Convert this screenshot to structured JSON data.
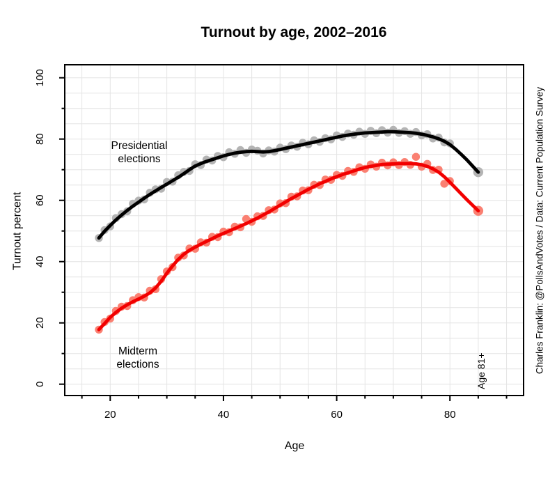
{
  "title": "Turnout by age, 2002–2016",
  "xlabel": "Age",
  "ylabel": "Turnout percent",
  "watermark": {
    "text": "Charles Franklin: @PollsAndVotes / Data: Current Population Survey",
    "color": "#1a1aee"
  },
  "annotations": {
    "presidential_label": {
      "line1": "Presidential",
      "line2": "elections",
      "color": "#000000"
    },
    "midterm_label": {
      "line1": "Midterm",
      "line2": "elections",
      "color": "#f20000"
    },
    "age_bin_label": {
      "text": "Age 81+",
      "color": "#a6a6a6"
    }
  },
  "axes": {
    "x_ticks_major": [
      20,
      40,
      60,
      80
    ],
    "x_ticks_minor": [
      15,
      25,
      30,
      35,
      45,
      50,
      55,
      65,
      70,
      75,
      85,
      90
    ],
    "y_ticks_major": [
      0,
      20,
      40,
      60,
      80,
      100
    ],
    "y_ticks_minor": [
      10,
      30,
      50,
      70,
      90
    ],
    "grid_step": 5,
    "grid_color": "#e4e4e4"
  },
  "chart_data": {
    "type": "scatter",
    "title": "Turnout by age, 2002–2016",
    "xlabel": "Age",
    "ylabel": "Turnout percent",
    "xlim": [
      12,
      93
    ],
    "ylim": [
      0,
      100
    ],
    "grid": "on",
    "note_last_point": "Age 81+ aggregated at x=85",
    "x_ages": [
      18,
      19,
      20,
      21,
      22,
      23,
      24,
      25,
      26,
      27,
      28,
      29,
      30,
      31,
      32,
      33,
      34,
      35,
      36,
      37,
      38,
      39,
      40,
      41,
      42,
      43,
      44,
      45,
      46,
      47,
      48,
      49,
      50,
      51,
      52,
      53,
      54,
      55,
      56,
      57,
      58,
      59,
      60,
      61,
      62,
      63,
      64,
      65,
      66,
      67,
      68,
      69,
      70,
      71,
      72,
      73,
      74,
      75,
      76,
      77,
      78,
      79,
      80,
      81,
      82,
      83,
      84,
      85
    ],
    "series": [
      {
        "name": "Presidential elections",
        "line_color": "#000000",
        "point_color": "#b4b4b4",
        "points": [
          47.7,
          50.3,
          51.5,
          54.2,
          55.5,
          56.4,
          58.9,
          59.9,
          60.3,
          62.5,
          63.6,
          63.8,
          66.0,
          66.1,
          68.2,
          69.3,
          69.6,
          71.8,
          71.5,
          73.3,
          73.0,
          74.5,
          74.1,
          75.7,
          75.2,
          76.4,
          75.5,
          76.6,
          76.2,
          75.3,
          76.3,
          75.9,
          77.2,
          76.7,
          77.9,
          77.5,
          78.8,
          78.3,
          79.6,
          79.1,
          80.3,
          79.9,
          81.2,
          80.7,
          81.8,
          81.4,
          82.4,
          81.7,
          82.7,
          81.9,
          82.9,
          82.1,
          83.0,
          82.0,
          82.6,
          81.7,
          82.3,
          81.2,
          81.6,
          80.2,
          80.5,
          78.9,
          78.6,
          null,
          null,
          null,
          null,
          69.2
        ],
        "smooth": [
          47.7,
          49.9,
          51.8,
          53.6,
          55.2,
          56.7,
          58.1,
          59.4,
          60.7,
          61.9,
          63.1,
          64.2,
          65.3,
          66.4,
          67.5,
          68.7,
          70.0,
          71.2,
          72.0,
          72.7,
          73.3,
          73.9,
          74.5,
          75.0,
          75.4,
          75.7,
          75.9,
          76.0,
          75.9,
          75.8,
          75.9,
          76.2,
          76.6,
          77.0,
          77.4,
          77.8,
          78.2,
          78.6,
          79.0,
          79.4,
          79.8,
          80.2,
          80.6,
          81.0,
          81.3,
          81.6,
          81.8,
          82.0,
          82.1,
          82.2,
          82.3,
          82.4,
          82.4,
          82.3,
          82.2,
          82.1,
          81.9,
          81.6,
          81.2,
          80.7,
          80.1,
          79.3,
          78.2,
          76.7,
          75.0,
          73.2,
          71.2,
          69.2
        ]
      },
      {
        "name": "Midterm elections",
        "line_color": "#f20000",
        "point_color": "#fa8072",
        "points": [
          17.8,
          20.3,
          21.4,
          23.9,
          25.3,
          25.5,
          27.4,
          28.4,
          28.3,
          30.5,
          31.0,
          34.3,
          36.8,
          38.2,
          41.3,
          42.0,
          44.3,
          44.2,
          46.3,
          46.2,
          48.1,
          48.0,
          49.8,
          49.6,
          51.4,
          51.2,
          53.9,
          53.0,
          54.8,
          54.9,
          56.8,
          57.0,
          59.0,
          59.1,
          61.2,
          61.3,
          63.2,
          63.3,
          65.1,
          65.0,
          66.8,
          66.7,
          68.3,
          68.0,
          69.6,
          69.3,
          70.8,
          70.3,
          71.7,
          71.0,
          72.3,
          71.4,
          72.4,
          71.5,
          72.5,
          71.6,
          74.2,
          71.0,
          71.9,
          69.9,
          70.0,
          65.4,
          66.3,
          null,
          null,
          null,
          null,
          56.6
        ],
        "smooth": [
          17.8,
          19.8,
          21.8,
          23.4,
          24.8,
          25.9,
          26.9,
          27.8,
          28.7,
          29.8,
          31.4,
          33.6,
          36.2,
          38.6,
          40.7,
          42.4,
          43.7,
          44.7,
          45.7,
          46.6,
          47.5,
          48.4,
          49.2,
          50.0,
          50.8,
          51.6,
          52.4,
          53.3,
          54.2,
          55.2,
          56.2,
          57.3,
          58.4,
          59.5,
          60.6,
          61.6,
          62.6,
          63.6,
          64.5,
          65.4,
          66.2,
          67.0,
          67.7,
          68.4,
          69.0,
          69.6,
          70.2,
          70.7,
          71.1,
          71.4,
          71.7,
          71.8,
          71.9,
          72.0,
          72.0,
          72.0,
          71.9,
          71.6,
          71.1,
          70.3,
          69.2,
          67.7,
          65.9,
          64.0,
          62.1,
          60.2,
          58.4,
          56.6
        ]
      }
    ]
  }
}
